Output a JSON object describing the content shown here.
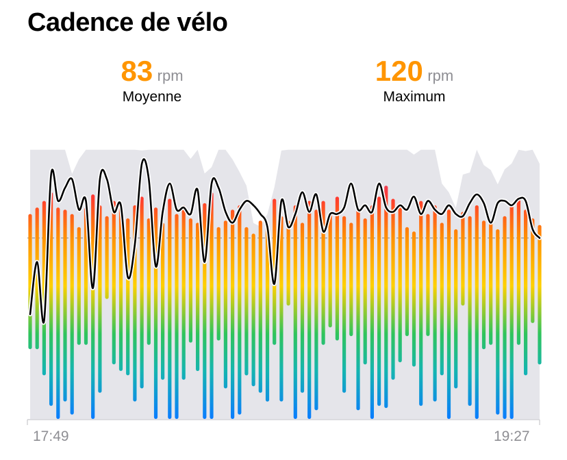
{
  "title": "Cadence de vélo",
  "stats": {
    "average": {
      "value": "83",
      "unit": "rpm",
      "label": "Moyenne"
    },
    "maximum": {
      "value": "120",
      "unit": "rpm",
      "label": "Maximum"
    }
  },
  "colors": {
    "accent": "#ff9500",
    "elevation": "#e5e5ea",
    "smooth_line": "#000000",
    "average_line": "#8e8e93",
    "gradient": [
      "#0a7cff",
      "#15b5b0",
      "#2fc45c",
      "#ffd000",
      "#ff9500",
      "#ff3b30",
      "#af52de"
    ]
  },
  "chart_data": {
    "type": "bar",
    "x_labels": [
      "17:49",
      "19:27"
    ],
    "y_range": [
      0,
      130
    ],
    "average": 83,
    "values": [
      [
        94,
        32
      ],
      [
        97,
        32
      ],
      [
        100,
        20
      ],
      [
        104,
        6
      ],
      [
        97,
        0
      ],
      [
        96,
        8
      ],
      [
        94,
        2
      ],
      [
        88,
        34
      ],
      [
        97,
        34
      ],
      [
        103,
        0
      ],
      [
        98,
        12
      ],
      [
        93,
        55
      ],
      [
        100,
        25
      ],
      [
        99,
        22
      ],
      [
        92,
        20
      ],
      [
        98,
        8
      ],
      [
        102,
        14
      ],
      [
        92,
        34
      ],
      [
        97,
        0
      ],
      [
        90,
        18
      ],
      [
        101,
        0
      ],
      [
        94,
        0
      ],
      [
        98,
        18
      ],
      [
        92,
        35
      ],
      [
        90,
        22
      ],
      [
        99,
        0
      ],
      [
        104,
        0
      ],
      [
        88,
        36
      ],
      [
        91,
        14
      ],
      [
        96,
        0
      ],
      [
        98,
        2
      ],
      [
        88,
        20
      ],
      [
        85,
        15
      ],
      [
        91,
        12
      ],
      [
        89,
        8
      ],
      [
        101,
        34
      ],
      [
        93,
        8
      ],
      [
        91,
        52
      ],
      [
        98,
        0
      ],
      [
        90,
        12
      ],
      [
        100,
        0
      ],
      [
        96,
        4
      ],
      [
        100,
        34
      ],
      [
        95,
        42
      ],
      [
        102,
        36
      ],
      [
        93,
        12
      ],
      [
        90,
        38
      ],
      [
        96,
        4
      ],
      [
        92,
        25
      ],
      [
        98,
        0
      ],
      [
        102,
        6
      ],
      [
        107,
        5
      ],
      [
        101,
        18
      ],
      [
        97,
        26
      ],
      [
        88,
        38
      ],
      [
        86,
        24
      ],
      [
        100,
        6
      ],
      [
        94,
        38
      ],
      [
        98,
        8
      ],
      [
        90,
        20
      ],
      [
        96,
        0
      ],
      [
        87,
        14
      ],
      [
        95,
        52
      ],
      [
        93,
        6
      ],
      [
        98,
        0
      ],
      [
        91,
        32
      ],
      [
        90,
        34
      ],
      [
        87,
        2
      ],
      [
        93,
        0
      ],
      [
        98,
        0
      ],
      [
        102,
        34
      ],
      [
        96,
        20
      ],
      [
        92,
        44
      ],
      [
        89,
        25
      ]
    ],
    "smooth_line": [
      48,
      72,
      45,
      112,
      100,
      106,
      110,
      96,
      100,
      60,
      110,
      110,
      95,
      98,
      65,
      80,
      117,
      110,
      70,
      95,
      108,
      96,
      97,
      94,
      105,
      72,
      108,
      106,
      95,
      90,
      96,
      100,
      98,
      94,
      88,
      62,
      100,
      88,
      94,
      104,
      95,
      103,
      86,
      94,
      94,
      97,
      108,
      96,
      98,
      95,
      108,
      97,
      95,
      98,
      96,
      102,
      94,
      100,
      96,
      94,
      98,
      94,
      93,
      99,
      103,
      99,
      90,
      99,
      100,
      98,
      101,
      100,
      87,
      83
    ]
  }
}
